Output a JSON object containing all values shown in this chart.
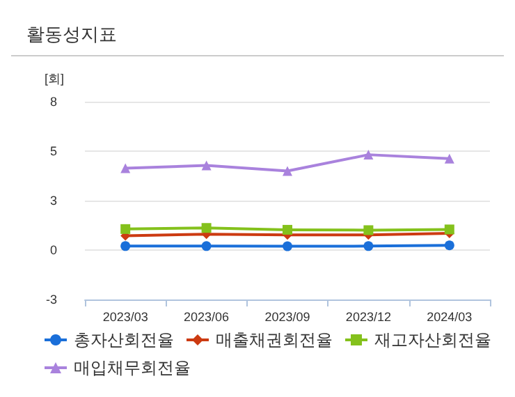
{
  "chart_data": {
    "type": "line",
    "title": "활동성지표",
    "ylabel": "[회]",
    "categories": [
      "2023/03",
      "2023/06",
      "2023/09",
      "2023/12",
      "2024/03"
    ],
    "series": [
      {
        "name": "총자산회전율",
        "color": "#1a6fd9",
        "marker": "circle",
        "values": [
          0.21,
          0.21,
          0.2,
          0.21,
          0.25
        ]
      },
      {
        "name": "매출채권회전율",
        "color": "#cc3a11",
        "marker": "diamond",
        "values": [
          0.77,
          0.85,
          0.81,
          0.81,
          0.9
        ]
      },
      {
        "name": "재고자산회전율",
        "color": "#84c11c",
        "marker": "square",
        "values": [
          1.13,
          1.19,
          1.09,
          1.07,
          1.11
        ]
      },
      {
        "name": "매입채무회전율",
        "color": "#a982dd",
        "marker": "triangle",
        "values": [
          4.41,
          4.56,
          4.26,
          5.14,
          4.93
        ]
      }
    ],
    "ylim": [
      -2.67,
      8
    ],
    "yticks": [
      {
        "value": -2.67,
        "label": "-3"
      },
      0,
      {
        "value": 2.67,
        "label": "3"
      },
      {
        "value": 5.33,
        "label": "5"
      },
      8
    ],
    "grid": "y",
    "legend": "bottom"
  }
}
